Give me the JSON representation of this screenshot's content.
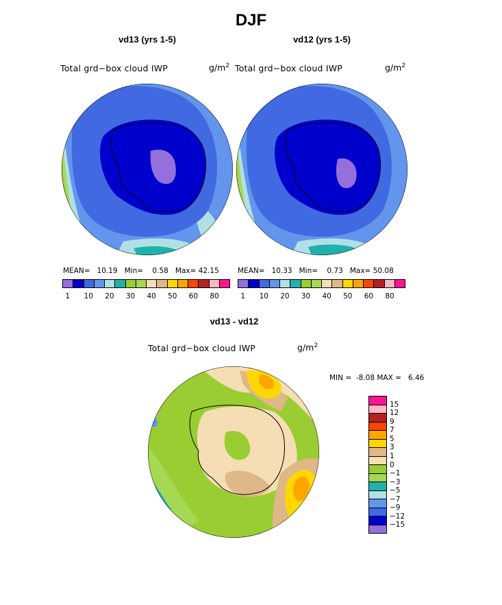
{
  "title": "DJF",
  "panels": [
    {
      "subtitle": "vd13 (yrs 1-5)",
      "label": "Total grd−box cloud IWP",
      "units": "g/m",
      "units_exp": "2",
      "mean_label": "MEAN=",
      "mean": "10.19",
      "min_label": "Min=",
      "min": "0.58",
      "max_label": "Max=",
      "max": "42.15"
    },
    {
      "subtitle": "vd12 (yrs 1-5)",
      "label": "Total grd−box cloud IWP",
      "units": "g/m",
      "units_exp": "2",
      "mean_label": "MEAN=",
      "mean": "10.33",
      "min_label": "Min=",
      "min": "0.73",
      "max_label": "Max=",
      "max": "50.08"
    }
  ],
  "colorbar_top": {
    "colors": [
      "#9370db",
      "#0000cd",
      "#4169e1",
      "#6495ed",
      "#b0e0e6",
      "#20b2aa",
      "#9acd32",
      "#a6d854",
      "#f5deb3",
      "#deb887",
      "#ffd700",
      "#ffa500",
      "#ff4500",
      "#b22222",
      "#ffb6c1",
      "#ff1493"
    ],
    "tick_labels": [
      "1",
      "10",
      "20",
      "30",
      "40",
      "50",
      "60",
      "80"
    ]
  },
  "diff": {
    "subtitle": "vd13 - vd12",
    "label": "Total grd−box cloud IWP",
    "units": "g/m",
    "units_exp": "2",
    "min_label": "MIN =",
    "min": "-8.08",
    "max_label": "MAX =",
    "max": "6.46",
    "colors": [
      "#ff1493",
      "#ffb6c1",
      "#b22222",
      "#ff4500",
      "#ffa500",
      "#ffd700",
      "#deb887",
      "#f5deb3",
      "#9acd32",
      "#a6d854",
      "#20b2aa",
      "#b0e0e6",
      "#6495ed",
      "#4169e1",
      "#0000cd",
      "#9370db"
    ],
    "tick_labels": [
      "15",
      "12",
      "9",
      "7",
      "5",
      "3",
      "1",
      "0",
      "−1",
      "−3",
      "−5",
      "−7",
      "−9",
      "−12",
      "−15"
    ]
  }
}
